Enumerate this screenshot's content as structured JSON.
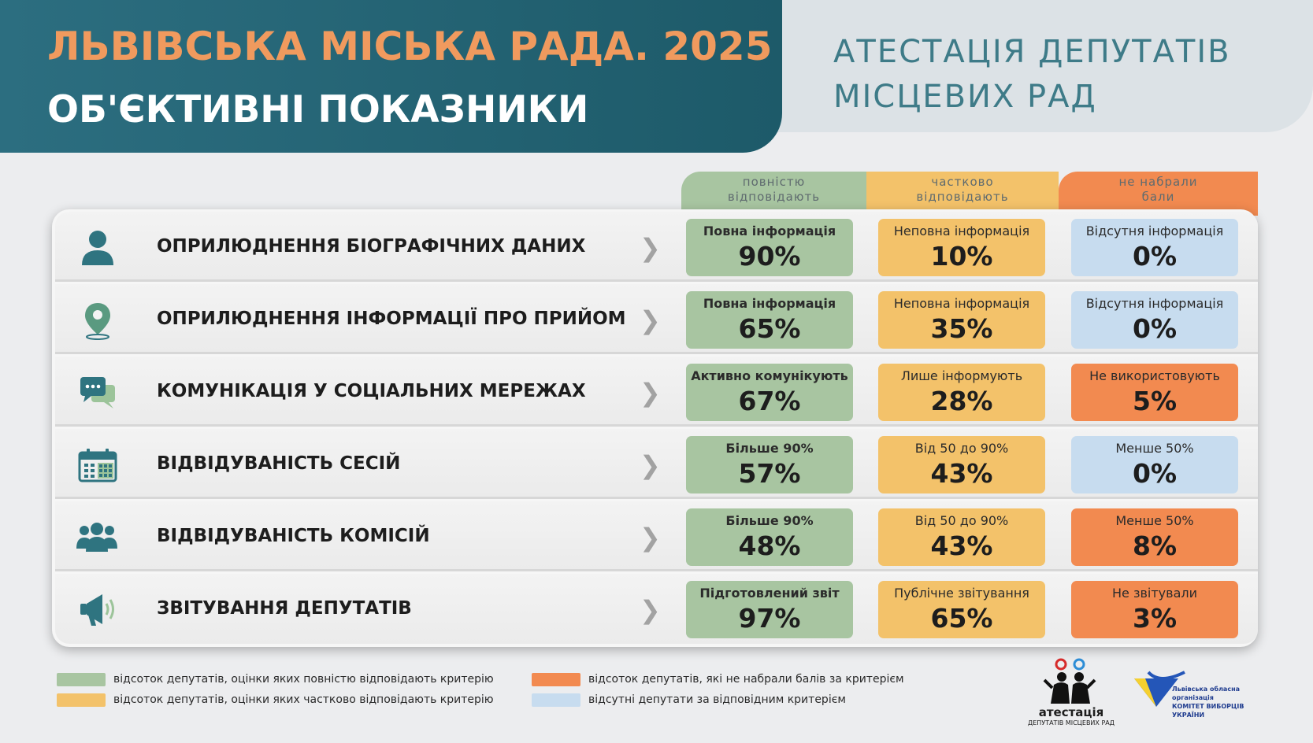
{
  "header": {
    "title": "ЛЬВІВСЬКА МІСЬКА РАДА. 2025",
    "subtitle": "ОБ'ЄКТИВНІ ПОКАЗНИКИ",
    "right_line1": "АТЕСТАЦІЯ ДЕПУТАТІВ",
    "right_line2": "МІСЦЕВИХ РАД"
  },
  "columns": [
    {
      "line1": "повністю",
      "line2": "відповідають",
      "color": "#a8c5a1"
    },
    {
      "line1": "частково",
      "line2": "відповідають",
      "color": "#f3c26a"
    },
    {
      "line1": "не набрали",
      "line2": "бали",
      "color": "#f28a50"
    }
  ],
  "rows": [
    {
      "icon": "user-icon",
      "label": "ОПРИЛЮДНЕННЯ БІОГРАФІЧНИХ ДАНИХ",
      "cells": [
        {
          "caption": "Повна інформація",
          "value": "90%"
        },
        {
          "caption": "Неповна інформація",
          "value": "10%"
        },
        {
          "caption": "Відсутня інформація",
          "value": "0%"
        }
      ]
    },
    {
      "icon": "location-pin-icon",
      "label": "ОПРИЛЮДНЕННЯ ІНФОРМАЦІЇ ПРО ПРИЙОМ",
      "cells": [
        {
          "caption": "Повна інформація",
          "value": "65%"
        },
        {
          "caption": "Неповна інформація",
          "value": "35%"
        },
        {
          "caption": "Відсутня інформація",
          "value": "0%"
        }
      ]
    },
    {
      "icon": "chat-bubbles-icon",
      "label": "КОМУНІКАЦІЯ У СОЦІАЛЬНИХ МЕРЕЖАХ",
      "cells": [
        {
          "caption": "Активно комунікують",
          "value": "67%"
        },
        {
          "caption": "Лише інформують",
          "value": "28%"
        },
        {
          "caption": "Не використовують",
          "value": "5%"
        }
      ]
    },
    {
      "icon": "calendar-icon",
      "label": "ВІДВІДУВАНІСТЬ СЕСІЙ",
      "cells": [
        {
          "caption": "Більше 90%",
          "value": "57%"
        },
        {
          "caption": "Від 50 до 90%",
          "value": "43%"
        },
        {
          "caption": "Менше 50%",
          "value": "0%"
        }
      ]
    },
    {
      "icon": "group-icon",
      "label": "ВІДВІДУВАНІСТЬ КОМІСІЙ",
      "cells": [
        {
          "caption": "Більше 90%",
          "value": "48%"
        },
        {
          "caption": "Від 50 до 90%",
          "value": "43%"
        },
        {
          "caption": "Менше 50%",
          "value": "8%"
        }
      ]
    },
    {
      "icon": "megaphone-icon",
      "label": "ЗВІТУВАННЯ ДЕПУТАТІВ",
      "cells": [
        {
          "caption": "Підготовлений звіт",
          "value": "97%"
        },
        {
          "caption": "Публічне звітування",
          "value": "65%"
        },
        {
          "caption": "Не звітували",
          "value": "3%"
        }
      ]
    }
  ],
  "legend": [
    {
      "text": "відсоток депутатів, оцінки яких повністю відповідають критерію",
      "color": "#a8c5a1"
    },
    {
      "text": "відсоток депутатів, оцінки яких частково відповідають критерію",
      "color": "#f3c26a"
    },
    {
      "text": "відсоток депутатів, які не набрали балів за критерієм",
      "color": "#f28a50"
    },
    {
      "text": "відсутні депутати за відповідним критерієм",
      "color": "#c7dcef"
    }
  ],
  "logos": {
    "atestatsiia_name": "атестація",
    "atestatsiia_sub": "ДЕПУТАТІВ МІСЦЕВИХ РАД",
    "kvu_line1": "Львівська обласна організація",
    "kvu_line2": "КОМІТЕТ ВИБОРЦІВ УКРАЇНИ"
  }
}
